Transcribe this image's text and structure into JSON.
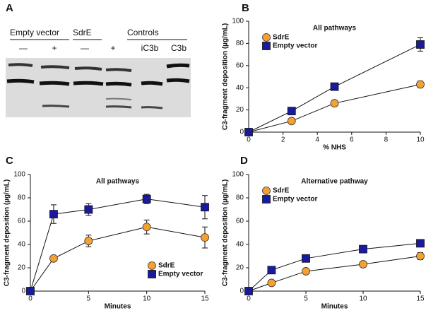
{
  "panel_a": {
    "panel": "A",
    "groups": [
      "Empty vector",
      "SdrE",
      "Controls"
    ],
    "lanes": [
      "—",
      "+",
      "—",
      "+",
      "iC3b",
      "C3b"
    ]
  },
  "chart_data": [
    {
      "type": "line",
      "panel": "B",
      "title": "All pathways",
      "xlabel": "% NHS",
      "ylabel": "C3-fragment deposition (µg/mL)",
      "x": [
        0,
        2.5,
        5,
        10
      ],
      "xlim": [
        0,
        10
      ],
      "xticks": [
        0,
        2,
        4,
        6,
        8,
        10
      ],
      "ylim": [
        0,
        100
      ],
      "yticks": [
        0,
        20,
        40,
        60,
        80,
        100
      ],
      "legend": "upper-left",
      "series": [
        {
          "name": "SdrE",
          "color": "#f5a030",
          "marker": "circle",
          "values": [
            0,
            10,
            26,
            43
          ],
          "errors": [
            0,
            1.5,
            1.5,
            3
          ]
        },
        {
          "name": "Empty vector",
          "color": "#1a1a9e",
          "marker": "square",
          "values": [
            0,
            19,
            41,
            79
          ],
          "errors": [
            0,
            1.5,
            2,
            6
          ]
        }
      ]
    },
    {
      "type": "line",
      "panel": "C",
      "title": "All pathways",
      "xlabel": "Minutes",
      "ylabel": "C3-fragment deposition (µg/mL)",
      "x": [
        0,
        2,
        5,
        10,
        15
      ],
      "xlim": [
        0,
        15
      ],
      "xticks": [
        0,
        5,
        10,
        15
      ],
      "ylim": [
        0,
        100
      ],
      "yticks": [
        0,
        20,
        40,
        60,
        80,
        100
      ],
      "legend": "lower-right",
      "series": [
        {
          "name": "SdrE",
          "color": "#f5a030",
          "marker": "circle",
          "values": [
            0,
            28,
            43,
            55,
            46
          ],
          "errors": [
            0,
            2,
            5,
            6,
            9
          ]
        },
        {
          "name": "Empty vector",
          "color": "#1a1a9e",
          "marker": "square",
          "values": [
            0,
            66,
            70,
            79,
            72
          ],
          "errors": [
            0,
            8,
            5,
            4,
            10
          ]
        }
      ]
    },
    {
      "type": "line",
      "panel": "D",
      "title": "Alternative pathway",
      "xlabel": "Minutes",
      "ylabel": "C3-fragment deposition (µg/mL)",
      "x": [
        0,
        2,
        5,
        10,
        15
      ],
      "xlim": [
        0,
        15
      ],
      "xticks": [
        0,
        5,
        10,
        15
      ],
      "ylim": [
        0,
        100
      ],
      "yticks": [
        0,
        20,
        40,
        60,
        80,
        100
      ],
      "legend": "upper-left",
      "series": [
        {
          "name": "SdrE",
          "color": "#f5a030",
          "marker": "circle",
          "values": [
            0,
            7,
            17,
            23,
            30
          ],
          "errors": [
            0,
            1,
            1,
            1,
            3
          ]
        },
        {
          "name": "Empty vector",
          "color": "#1a1a9e",
          "marker": "square",
          "values": [
            0,
            18,
            28,
            36,
            41
          ],
          "errors": [
            0,
            2,
            1.5,
            1.5,
            2
          ]
        }
      ]
    }
  ]
}
